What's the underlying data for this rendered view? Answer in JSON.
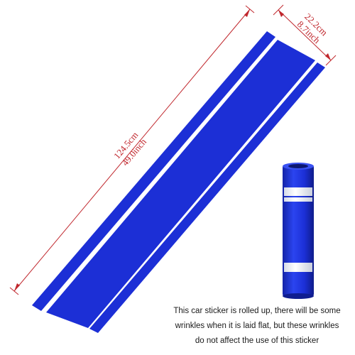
{
  "colors": {
    "stripe": "#1c2fd6",
    "dimension": "#c0272d",
    "text": "#1a1a1a",
    "background": "#ffffff"
  },
  "dimensions": {
    "length_cm": "124.5cm",
    "length_inch": "49.0inch",
    "width_cm": "22.2cm",
    "width_inch": "8.7inch"
  },
  "note": {
    "line1": "This car sticker is rolled up, there will be some",
    "line2": "wrinkles when it is laid flat, but these wrinkles",
    "line3": "do not affect the use of this sticker"
  }
}
